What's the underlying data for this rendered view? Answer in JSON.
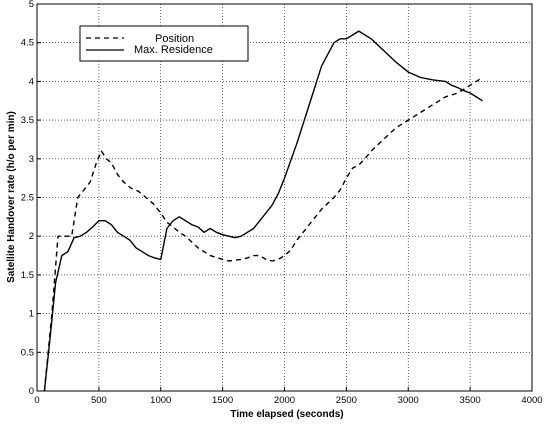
{
  "chart_data": {
    "type": "line",
    "title": "",
    "xlabel": "Time elapsed (seconds)",
    "ylabel": "Satellite Handover rate (h/o per min)",
    "xlim": [
      0,
      4000
    ],
    "ylim": [
      0,
      5
    ],
    "x_ticks": [
      "0",
      "500",
      "1000",
      "1500",
      "2000",
      "2500",
      "3000",
      "3500",
      "4000"
    ],
    "y_ticks": [
      "0",
      "0.5",
      "1",
      "1.5",
      "2",
      "2.5",
      "3",
      "3.5",
      "4",
      "4.5",
      "5"
    ],
    "grid": true,
    "legend_position": "top-left",
    "series": [
      {
        "name": "Position",
        "style": "dashed",
        "color": "#000000",
        "x": [
          60,
          120,
          170,
          220,
          280,
          330,
          380,
          430,
          480,
          520,
          560,
          600,
          650,
          700,
          760,
          820,
          880,
          940,
          1000,
          1050,
          1100,
          1150,
          1200,
          1300,
          1400,
          1500,
          1550,
          1650,
          1700,
          1750,
          1800,
          1850,
          1900,
          1950,
          2000,
          2050,
          2100,
          2200,
          2300,
          2400,
          2450,
          2500,
          2550,
          2600,
          2650,
          2700,
          2800,
          2900,
          3000,
          3100,
          3200,
          3300,
          3400,
          3500,
          3600
        ],
        "y": [
          0,
          1.0,
          2.0,
          2.0,
          2.0,
          2.5,
          2.6,
          2.7,
          2.95,
          3.1,
          3.0,
          2.95,
          2.8,
          2.7,
          2.62,
          2.58,
          2.5,
          2.42,
          2.3,
          2.18,
          2.12,
          2.05,
          2.0,
          1.85,
          1.75,
          1.7,
          1.68,
          1.7,
          1.72,
          1.75,
          1.75,
          1.7,
          1.68,
          1.7,
          1.75,
          1.82,
          1.95,
          2.15,
          2.35,
          2.5,
          2.6,
          2.75,
          2.88,
          2.92,
          3.0,
          3.1,
          3.25,
          3.4,
          3.5,
          3.6,
          3.7,
          3.8,
          3.85,
          3.95,
          4.05
        ]
      },
      {
        "name": "Max. Residence",
        "style": "solid",
        "color": "#000000",
        "x": [
          60,
          100,
          150,
          200,
          250,
          300,
          350,
          400,
          450,
          500,
          550,
          600,
          650,
          700,
          750,
          800,
          850,
          900,
          950,
          1000,
          1050,
          1100,
          1150,
          1200,
          1250,
          1300,
          1350,
          1400,
          1450,
          1500,
          1550,
          1600,
          1650,
          1700,
          1750,
          1800,
          1850,
          1900,
          1950,
          2000,
          2100,
          2200,
          2300,
          2400,
          2450,
          2500,
          2550,
          2600,
          2700,
          2800,
          2900,
          3000,
          3100,
          3200,
          3300,
          3350,
          3400,
          3450,
          3500,
          3550,
          3600
        ],
        "y": [
          0,
          0.6,
          1.4,
          1.75,
          1.8,
          1.98,
          2.0,
          2.05,
          2.12,
          2.2,
          2.2,
          2.15,
          2.05,
          2.0,
          1.95,
          1.85,
          1.8,
          1.75,
          1.72,
          1.7,
          2.1,
          2.2,
          2.25,
          2.2,
          2.15,
          2.12,
          2.05,
          2.1,
          2.05,
          2.02,
          2.0,
          1.98,
          2.0,
          2.05,
          2.1,
          2.2,
          2.3,
          2.4,
          2.55,
          2.75,
          3.2,
          3.7,
          4.2,
          4.5,
          4.55,
          4.55,
          4.6,
          4.65,
          4.55,
          4.4,
          4.25,
          4.12,
          4.05,
          4.02,
          4.0,
          3.95,
          3.92,
          3.88,
          3.85,
          3.8,
          3.75
        ]
      }
    ]
  }
}
